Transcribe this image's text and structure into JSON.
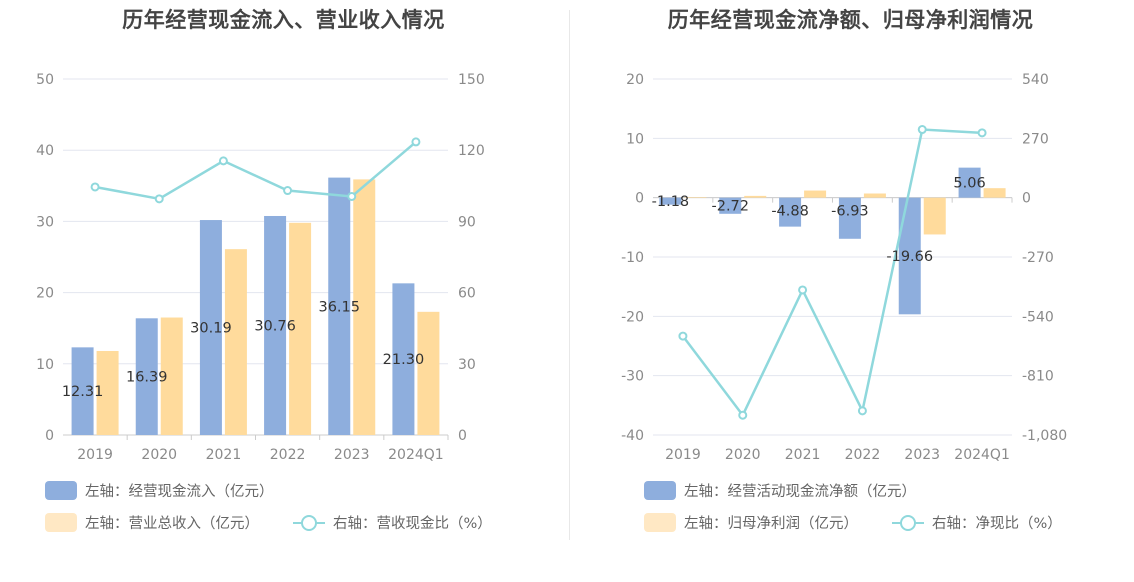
{
  "charts": [
    {
      "title": "历年经营现金流入、营业收入情况",
      "legend": {
        "bar1": "左轴：经营现金流入（亿元）",
        "bar2": "左轴：营业总收入（亿元）",
        "line": "右轴：营收现金比（%）"
      }
    },
    {
      "title": "历年经营现金流净额、归母净利润情况",
      "legend": {
        "bar1": "左轴：经营活动现金流净额（亿元）",
        "bar2": "左轴：归母净利润（亿元）",
        "line": "右轴：净现比（%）"
      }
    }
  ],
  "colors": {
    "bar1": "#8eaedd",
    "bar2": "#ffdb9c",
    "line": "#8fd8dc",
    "grid": "#e3e6ef",
    "axis": "#cccccc"
  },
  "chart_data": [
    {
      "type": "bar",
      "title": "历年经营现金流入、营业收入情况",
      "categories": [
        "2019",
        "2020",
        "2021",
        "2022",
        "2023",
        "2024Q1"
      ],
      "left_axis": {
        "ticks": [
          "0",
          "10",
          "20",
          "30",
          "40",
          "50"
        ],
        "ylim": [
          0,
          50
        ]
      },
      "right_axis": {
        "ticks": [
          "0",
          "30",
          "60",
          "90",
          "120",
          "150"
        ],
        "ylim": [
          0,
          150
        ]
      },
      "series": [
        {
          "name": "左轴：经营现金流入（亿元）",
          "axis": "left",
          "kind": "bar",
          "values": [
            12.31,
            16.39,
            30.19,
            30.76,
            36.15,
            21.3
          ],
          "labels": [
            "12.31",
            "16.39",
            "30.19",
            "30.76",
            "36.15",
            "21.30"
          ]
        },
        {
          "name": "左轴：营业总收入（亿元）",
          "axis": "left",
          "kind": "bar",
          "values": [
            11.8,
            16.5,
            26.1,
            29.8,
            35.9,
            17.3
          ]
        },
        {
          "name": "右轴：营收现金比（%）",
          "axis": "right",
          "kind": "line",
          "values": [
            104.5,
            99.5,
            115.5,
            103,
            100.5,
            123.5
          ]
        }
      ]
    },
    {
      "type": "bar",
      "title": "历年经营现金流净额、归母净利润情况",
      "categories": [
        "2019",
        "2020",
        "2021",
        "2022",
        "2023",
        "2024Q1"
      ],
      "left_axis": {
        "ticks": [
          "-40",
          "-30",
          "-20",
          "-10",
          "0",
          "10",
          "20"
        ],
        "ylim": [
          -40,
          20
        ]
      },
      "right_axis": {
        "ticks": [
          "-1,080",
          "-810",
          "-540",
          "-270",
          "0",
          "270",
          "540"
        ],
        "ylim": [
          -1080,
          540
        ]
      },
      "series": [
        {
          "name": "左轴：经营活动现金流净额（亿元）",
          "axis": "left",
          "kind": "bar",
          "values": [
            -1.18,
            -2.72,
            -4.88,
            -6.93,
            -19.66,
            5.06
          ],
          "labels": [
            "-1.18",
            "-2.72",
            "-4.88",
            "-6.93",
            "-19.66",
            "5.06"
          ]
        },
        {
          "name": "左轴：归母净利润（亿元）",
          "axis": "left",
          "kind": "bar",
          "values": [
            0.1,
            0.3,
            1.2,
            0.7,
            -6.2,
            1.6
          ]
        },
        {
          "name": "右轴：净现比（%）",
          "axis": "right",
          "kind": "line",
          "values": [
            -630,
            -990,
            -420,
            -970,
            310,
            295
          ]
        }
      ]
    }
  ]
}
